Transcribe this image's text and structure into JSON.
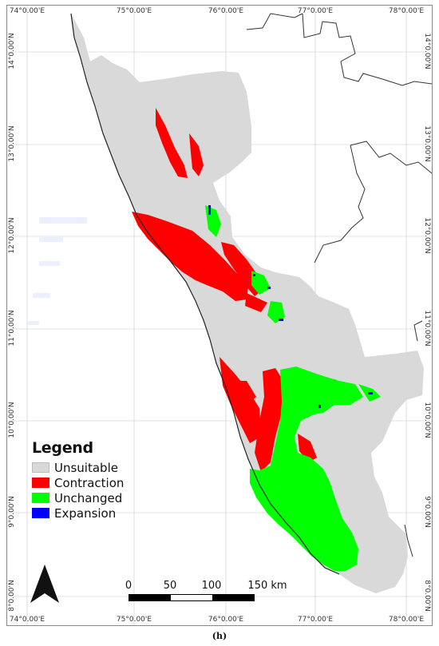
{
  "map": {
    "top_ticks": [
      "74°0.00'E",
      "75°0.00'E",
      "76°0.00'E",
      "77°0.00'E",
      "78°0.00'E"
    ],
    "bottom_ticks": [
      "74°0.00'E",
      "75°0.00'E",
      "76°0.00'E",
      "77°0.00'E",
      "78°0.00'E"
    ],
    "left_ticks": [
      "14°0.00'N",
      "13°0.00'N",
      "12°0.00'N",
      "11°0.00'N",
      "10°0.00'N",
      "9°0.00'N",
      "8°0.00'N"
    ],
    "right_ticks": [
      "14°0.00'N",
      "13°0.00'N",
      "12°0.00'N",
      "11°0.00'N",
      "10°0.00'N",
      "9°0.00'N",
      "8°0.00'N"
    ],
    "colors": {
      "unsuitable": "#d9d9d9",
      "contraction": "#ff0000",
      "unchanged": "#00ff00",
      "expansion": "#0000ff",
      "border": "#333333",
      "grid": "#c8c8c8"
    }
  },
  "legend": {
    "title": "Legend",
    "items": [
      {
        "label": "Unsuitable",
        "color": "#d9d9d9"
      },
      {
        "label": "Contraction",
        "color": "#ff0000"
      },
      {
        "label": "Unchanged",
        "color": "#00ff00"
      },
      {
        "label": "Expansion",
        "color": "#0000ff"
      }
    ]
  },
  "scalebar": {
    "labels": [
      "0",
      "50",
      "100",
      "150 km"
    ]
  },
  "caption": "(h)"
}
